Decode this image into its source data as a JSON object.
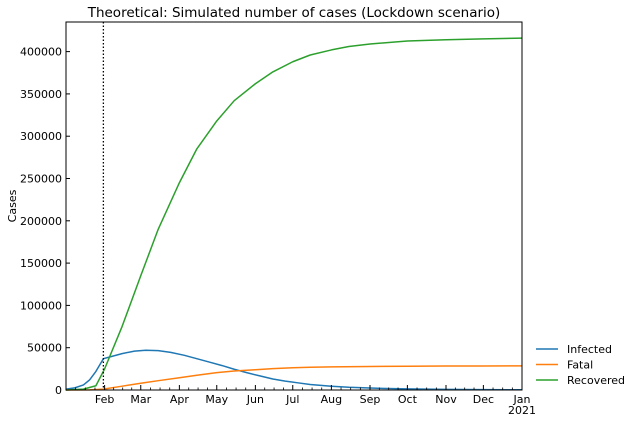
{
  "chart_data": {
    "type": "line",
    "title": "Theoretical: Simulated number of cases (Lockdown scenario)",
    "xlabel": "",
    "ylabel": "Cases",
    "x_unit": "date",
    "xlim": [
      "2020-01-01",
      "2021-01-01"
    ],
    "ylim": [
      0,
      435000
    ],
    "yticks": [
      0,
      50000,
      100000,
      150000,
      200000,
      250000,
      300000,
      350000,
      400000
    ],
    "xticks": [
      {
        "date": "2020-02-01",
        "label": "Feb"
      },
      {
        "date": "2020-03-01",
        "label": "Mar"
      },
      {
        "date": "2020-04-01",
        "label": "Apr"
      },
      {
        "date": "2020-05-01",
        "label": "May"
      },
      {
        "date": "2020-06-01",
        "label": "Jun"
      },
      {
        "date": "2020-07-01",
        "label": "Jul"
      },
      {
        "date": "2020-08-01",
        "label": "Aug"
      },
      {
        "date": "2020-09-01",
        "label": "Sep"
      },
      {
        "date": "2020-10-01",
        "label": "Oct"
      },
      {
        "date": "2020-11-01",
        "label": "Nov"
      },
      {
        "date": "2020-12-01",
        "label": "Dec"
      },
      {
        "date": "2021-01-01",
        "label": "Jan",
        "sublabel": "2021"
      }
    ],
    "vline": {
      "date": "2020-01-31",
      "style": "dotted",
      "color": "#000000"
    },
    "grid": false,
    "legend_position": "outside-right-bottom",
    "series": [
      {
        "name": "Infected",
        "color": "#1f77b4",
        "points": [
          [
            "2020-01-01",
            1000
          ],
          [
            "2020-01-08",
            2500
          ],
          [
            "2020-01-15",
            6000
          ],
          [
            "2020-01-20",
            12000
          ],
          [
            "2020-01-25",
            22000
          ],
          [
            "2020-01-31",
            37000
          ],
          [
            "2020-02-05",
            39000
          ],
          [
            "2020-02-15",
            43000
          ],
          [
            "2020-02-25",
            46000
          ],
          [
            "2020-03-05",
            47000
          ],
          [
            "2020-03-15",
            46500
          ],
          [
            "2020-03-25",
            44500
          ],
          [
            "2020-04-05",
            41000
          ],
          [
            "2020-04-15",
            37000
          ],
          [
            "2020-04-25",
            33000
          ],
          [
            "2020-05-05",
            29000
          ],
          [
            "2020-05-15",
            24500
          ],
          [
            "2020-05-25",
            20500
          ],
          [
            "2020-06-05",
            16500
          ],
          [
            "2020-06-15",
            13000
          ],
          [
            "2020-06-25",
            10500
          ],
          [
            "2020-07-05",
            8500
          ],
          [
            "2020-07-15",
            6500
          ],
          [
            "2020-08-01",
            4500
          ],
          [
            "2020-08-15",
            3200
          ],
          [
            "2020-09-01",
            2300
          ],
          [
            "2020-09-15",
            1700
          ],
          [
            "2020-10-01",
            1300
          ],
          [
            "2020-11-01",
            800
          ],
          [
            "2020-12-01",
            500
          ],
          [
            "2021-01-01",
            300
          ]
        ]
      },
      {
        "name": "Fatal",
        "color": "#ff7f0e",
        "points": [
          [
            "2020-01-01",
            0
          ],
          [
            "2020-01-20",
            200
          ],
          [
            "2020-01-31",
            1000
          ],
          [
            "2020-02-15",
            4500
          ],
          [
            "2020-03-01",
            8000
          ],
          [
            "2020-03-15",
            11000
          ],
          [
            "2020-04-01",
            14500
          ],
          [
            "2020-04-15",
            17500
          ],
          [
            "2020-05-01",
            20500
          ],
          [
            "2020-05-15",
            22500
          ],
          [
            "2020-06-01",
            24000
          ],
          [
            "2020-06-15",
            25300
          ],
          [
            "2020-07-01",
            26300
          ],
          [
            "2020-07-15",
            26900
          ],
          [
            "2020-08-01",
            27300
          ],
          [
            "2020-09-01",
            27800
          ],
          [
            "2020-10-01",
            28100
          ],
          [
            "2020-11-01",
            28300
          ],
          [
            "2020-12-01",
            28400
          ],
          [
            "2021-01-01",
            28500
          ]
        ]
      },
      {
        "name": "Recovered",
        "color": "#2ca02c",
        "points": [
          [
            "2020-01-01",
            0
          ],
          [
            "2020-01-15",
            1000
          ],
          [
            "2020-01-25",
            5000
          ],
          [
            "2020-02-01",
            25000
          ],
          [
            "2020-02-15",
            75000
          ],
          [
            "2020-03-01",
            135000
          ],
          [
            "2020-03-15",
            190000
          ],
          [
            "2020-04-01",
            245000
          ],
          [
            "2020-04-15",
            285000
          ],
          [
            "2020-05-01",
            318000
          ],
          [
            "2020-05-15",
            342000
          ],
          [
            "2020-06-01",
            362000
          ],
          [
            "2020-06-15",
            376000
          ],
          [
            "2020-07-01",
            388000
          ],
          [
            "2020-07-15",
            396000
          ],
          [
            "2020-08-01",
            402000
          ],
          [
            "2020-08-15",
            406000
          ],
          [
            "2020-09-01",
            409000
          ],
          [
            "2020-10-01",
            412500
          ],
          [
            "2020-11-01",
            414000
          ],
          [
            "2020-12-01",
            415000
          ],
          [
            "2021-01-01",
            416000
          ]
        ]
      }
    ]
  }
}
